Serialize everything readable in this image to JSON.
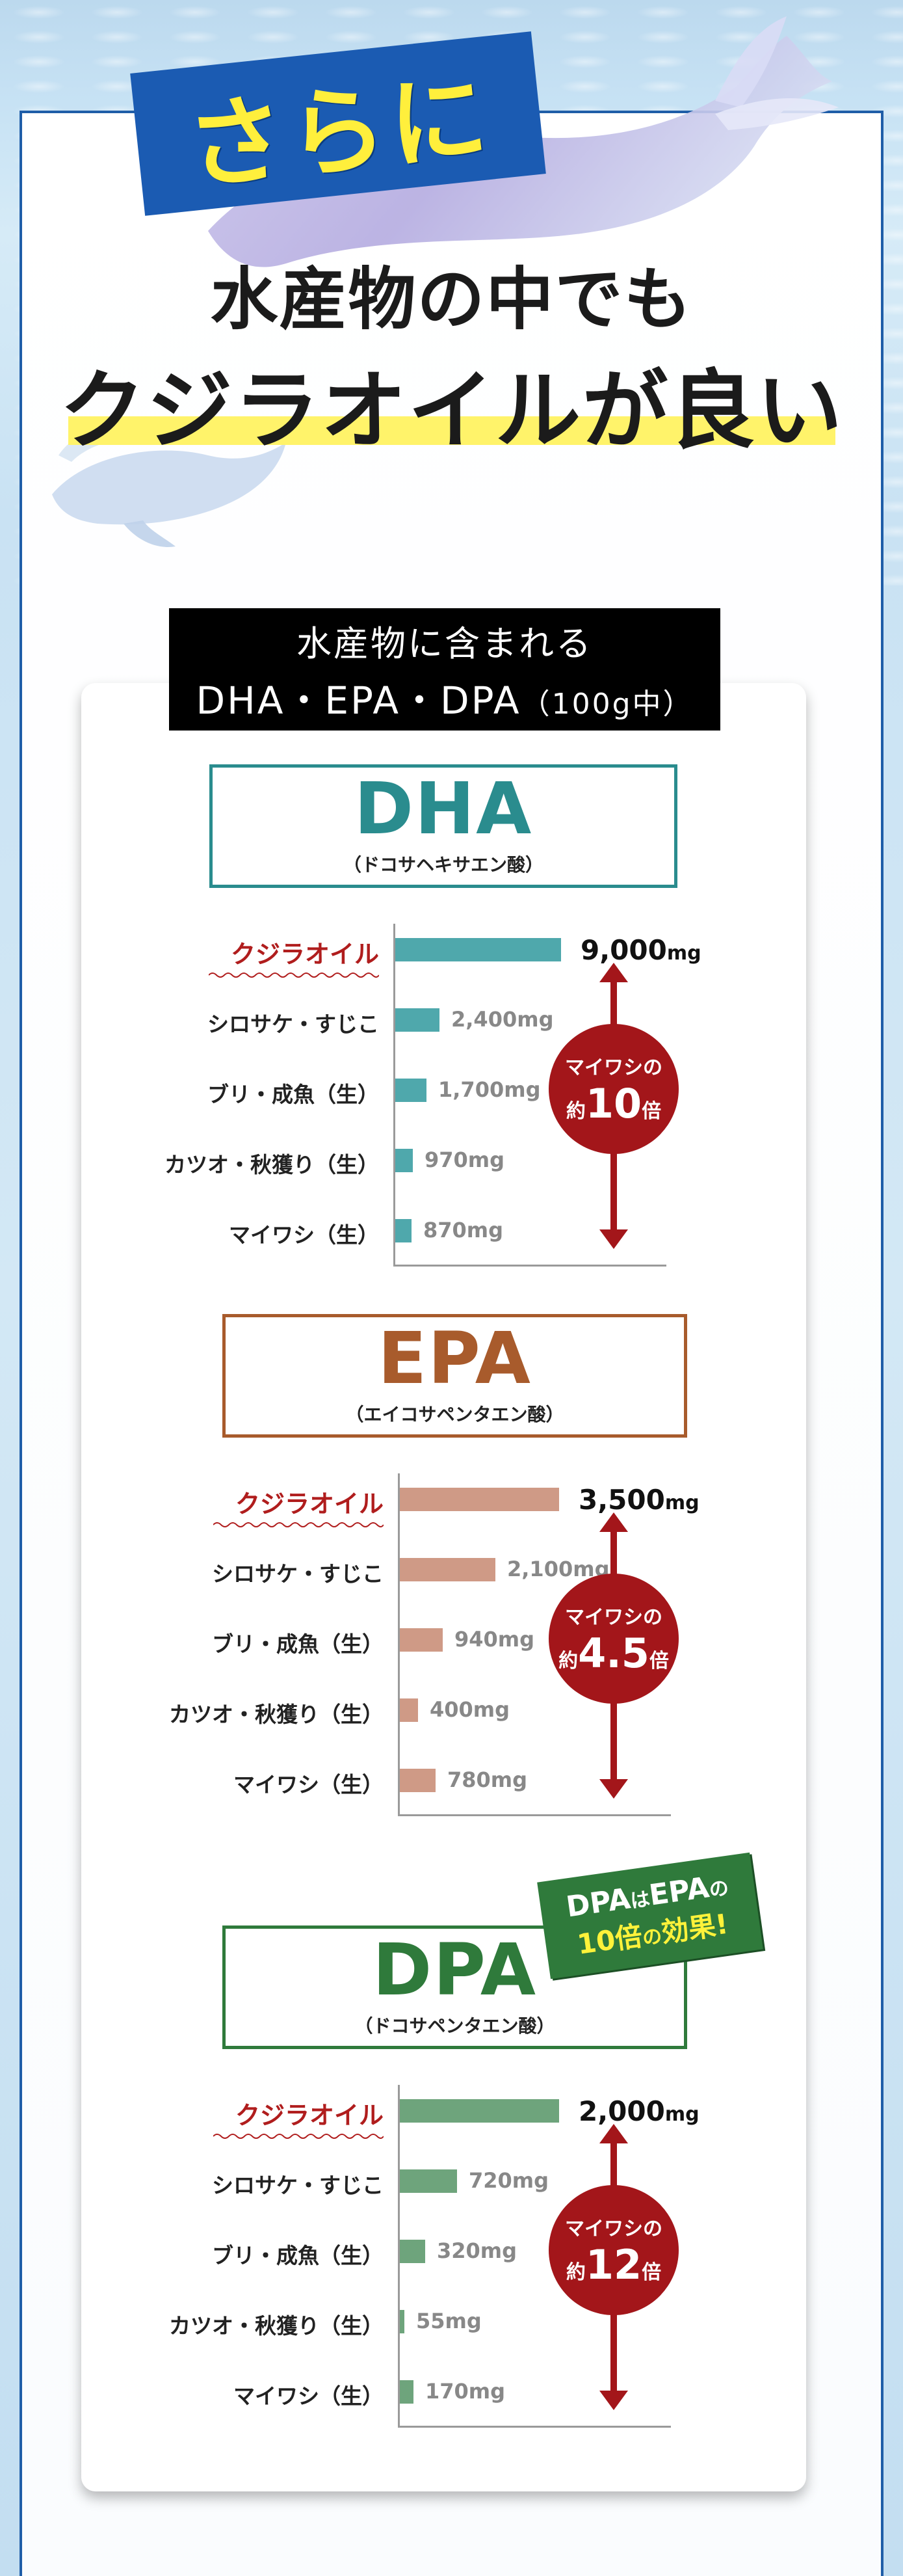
{
  "header": {
    "badge": "さらに",
    "title_line1": "水産物の中でも",
    "title_line2": "クジラオイルが良い"
  },
  "card_title": {
    "line1": "水産物に含まれる",
    "line2": "DHA・EPA・DPA",
    "line2_suffix": "（100g中）"
  },
  "colors": {
    "frame": "#1f5ea8",
    "badge_bg": "#1b5bb2",
    "badge_text": "#ffef3c",
    "highlight": "#fff36a",
    "dha": "#2a8c8e",
    "dha_bar": "#4fa8ac",
    "epa": "#a85b2c",
    "epa_bar": "#cf9a86",
    "dpa": "#2f7a3b",
    "dpa_bar": "#6ea47c",
    "circle": "#a3161a"
  },
  "sections": [
    {
      "name": "DHA",
      "subtitle": "（ドコサヘキサエン酸）",
      "circle_line1": "マイワシの",
      "circle_prefix": "約",
      "circle_num": "10",
      "circle_suffix": "倍",
      "rows": [
        {
          "label": "クジラオイル",
          "value": 9000,
          "display": "9,000",
          "unit": "mg"
        },
        {
          "label": "シロサケ・すじこ",
          "value": 2400,
          "display": "2,400mg"
        },
        {
          "label": "ブリ・成魚（生）",
          "value": 1700,
          "display": "1,700mg"
        },
        {
          "label": "カツオ・秋獲り（生）",
          "value": 970,
          "display": "970mg"
        },
        {
          "label": "マイワシ（生）",
          "value": 870,
          "display": "870mg"
        }
      ]
    },
    {
      "name": "EPA",
      "subtitle": "（エイコサペンタエン酸）",
      "circle_line1": "マイワシの",
      "circle_prefix": "約",
      "circle_num": "4.5",
      "circle_suffix": "倍",
      "rows": [
        {
          "label": "クジラオイル",
          "value": 3500,
          "display": "3,500",
          "unit": "mg"
        },
        {
          "label": "シロサケ・すじこ",
          "value": 2100,
          "display": "2,100mg"
        },
        {
          "label": "ブリ・成魚（生）",
          "value": 940,
          "display": "940mg"
        },
        {
          "label": "カツオ・秋獲り（生）",
          "value": 400,
          "display": "400mg"
        },
        {
          "label": "マイワシ（生）",
          "value": 780,
          "display": "780mg"
        }
      ]
    },
    {
      "name": "DPA",
      "subtitle": "（ドコサペンタエン酸）",
      "circle_line1": "マイワシの",
      "circle_prefix": "約",
      "circle_num": "12",
      "circle_suffix": "倍",
      "rows": [
        {
          "label": "クジラオイル",
          "value": 2000,
          "display": "2,000",
          "unit": "mg"
        },
        {
          "label": "シロサケ・すじこ",
          "value": 720,
          "display": "720mg"
        },
        {
          "label": "ブリ・成魚（生）",
          "value": 320,
          "display": "320mg"
        },
        {
          "label": "カツオ・秋獲り（生）",
          "value": 55,
          "display": "55mg"
        },
        {
          "label": "マイワシ（生）",
          "value": 170,
          "display": "170mg"
        }
      ]
    }
  ],
  "dpa_note": {
    "part1": "DPA",
    "part2": "は",
    "part3": "EPA",
    "part4": "の",
    "part5": "10倍",
    "part6": "の",
    "part7": "効果!"
  },
  "icons": [
    "whale-icon",
    "small-whale-icon",
    "double-arrow-icon"
  ]
}
